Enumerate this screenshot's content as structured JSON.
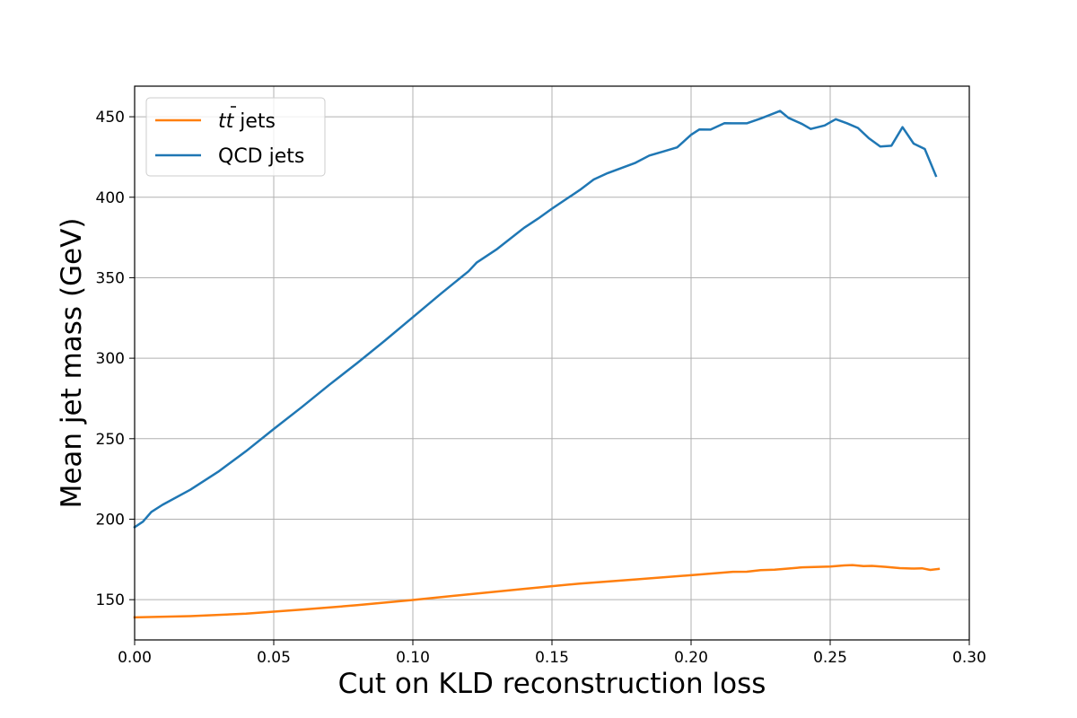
{
  "chart_data": {
    "type": "line",
    "title": "",
    "xlabel": "Cut on KLD reconstruction loss",
    "ylabel": "Mean jet mass (GeV)",
    "xlim": [
      0.0,
      0.3
    ],
    "ylim": [
      125,
      469
    ],
    "xticks": [
      0.0,
      0.05,
      0.1,
      0.15,
      0.2,
      0.25,
      0.3
    ],
    "xtick_labels": [
      "0.00",
      "0.05",
      "0.10",
      "0.15",
      "0.20",
      "0.25",
      "0.30"
    ],
    "yticks": [
      150,
      200,
      250,
      300,
      350,
      400,
      450
    ],
    "ytick_labels": [
      "150",
      "200",
      "250",
      "300",
      "350",
      "400",
      "450"
    ],
    "grid": true,
    "legend_position": "top-left",
    "series": [
      {
        "name": "tt̄ jets",
        "legend_label": {
          "main": "tt",
          "suffix": " jets"
        },
        "color": "#ff7f0e",
        "x": [
          0.0,
          0.02,
          0.04,
          0.06,
          0.08,
          0.1,
          0.12,
          0.14,
          0.16,
          0.18,
          0.2,
          0.215,
          0.22,
          0.225,
          0.23,
          0.24,
          0.25,
          0.255,
          0.258,
          0.262,
          0.265,
          0.27,
          0.275,
          0.28,
          0.283,
          0.286,
          0.289
        ],
        "values": [
          139,
          139.8,
          141.3,
          143.8,
          146.6,
          149.8,
          153.3,
          156.7,
          160.0,
          162.6,
          165.2,
          167.3,
          167.4,
          168.3,
          168.6,
          170.1,
          170.6,
          171.3,
          171.5,
          170.9,
          171.0,
          170.4,
          169.6,
          169.3,
          169.5,
          168.5,
          169.1
        ]
      },
      {
        "name": "QCD jets",
        "color": "#1f77b4",
        "x": [
          0.0,
          0.003,
          0.006,
          0.01,
          0.02,
          0.03,
          0.04,
          0.05,
          0.06,
          0.07,
          0.08,
          0.09,
          0.1,
          0.11,
          0.12,
          0.123,
          0.13,
          0.14,
          0.145,
          0.15,
          0.16,
          0.165,
          0.17,
          0.18,
          0.185,
          0.19,
          0.195,
          0.2,
          0.203,
          0.207,
          0.212,
          0.215,
          0.22,
          0.225,
          0.232,
          0.235,
          0.24,
          0.243,
          0.248,
          0.252,
          0.256,
          0.26,
          0.264,
          0.268,
          0.272,
          0.276,
          0.28,
          0.284,
          0.288
        ],
        "values": [
          195,
          198.5,
          204.5,
          208.9,
          218.3,
          229.4,
          242.2,
          256.0,
          269.5,
          283.5,
          297.0,
          311.0,
          325.5,
          340.0,
          354.0,
          359.5,
          367.5,
          381.0,
          386.7,
          392.9,
          404.5,
          411.0,
          415.0,
          421.4,
          425.9,
          428.4,
          431.0,
          438.8,
          442.1,
          442.0,
          446.0,
          445.9,
          445.9,
          448.9,
          453.6,
          449.3,
          445.4,
          442.4,
          444.6,
          448.5,
          446.0,
          443.0,
          436.5,
          431.5,
          432.0,
          443.5,
          433.3,
          430.0,
          413.3
        ]
      }
    ]
  }
}
